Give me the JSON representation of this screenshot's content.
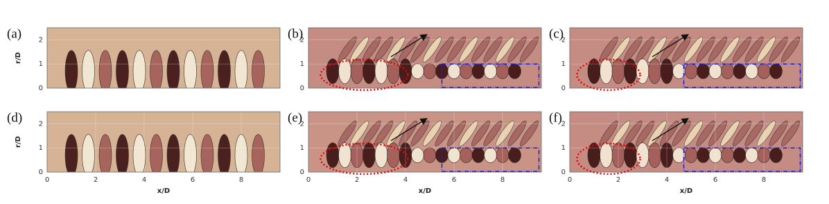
{
  "chart_data": [
    {
      "type": "contour",
      "label": "(a)",
      "ylabel": "r/D",
      "xlim": [
        0,
        9.6
      ],
      "ylim": [
        0,
        2.5
      ],
      "yticks": [
        0,
        1,
        2
      ],
      "grid": true
    },
    {
      "type": "contour",
      "label": "(b)",
      "xlim": [
        0,
        9.6
      ],
      "ylim": [
        0,
        2.5
      ],
      "yticks": [
        0,
        1,
        2
      ],
      "grid": true
    },
    {
      "type": "contour",
      "label": "(c)",
      "xlim": [
        0,
        9.6
      ],
      "ylim": [
        0,
        2.5
      ],
      "yticks": [
        0,
        1,
        2
      ],
      "grid": true
    },
    {
      "type": "contour",
      "label": "(d)",
      "xlabel": "x/D",
      "ylabel": "r/D",
      "xlim": [
        0,
        9.6
      ],
      "ylim": [
        0,
        2.5
      ],
      "xticks": [
        0,
        2,
        4,
        6,
        8
      ],
      "yticks": [
        0,
        1,
        2
      ],
      "grid": true
    },
    {
      "type": "contour",
      "label": "(e)",
      "xlabel": "x/D",
      "xlim": [
        0,
        9.6
      ],
      "ylim": [
        0,
        2.5
      ],
      "xticks": [
        0,
        2,
        4,
        6,
        8
      ],
      "yticks": [
        0,
        1,
        2
      ],
      "grid": true
    },
    {
      "type": "contour",
      "label": "(f)",
      "xlabel": "x/D",
      "xlim": [
        0,
        9.6
      ],
      "ylim": [
        0,
        2.5
      ],
      "xticks": [
        0,
        2,
        4,
        6,
        8
      ],
      "yticks": [
        0,
        1,
        2
      ],
      "grid": true
    }
  ]
}
